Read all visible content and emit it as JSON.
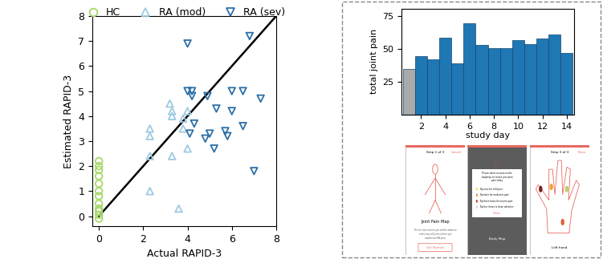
{
  "chart_data": [
    {
      "type": "scatter",
      "x_label": "Actual RAPID-3",
      "y_label": "Estimated RAPID-3",
      "xlim": [
        -0.3,
        8
      ],
      "ylim": [
        -0.4,
        8
      ],
      "xticks": [
        0,
        2,
        4,
        6,
        8
      ],
      "yticks": [
        0,
        1,
        2,
        3,
        4,
        5,
        6,
        7,
        8
      ],
      "legend": "upper center",
      "series": [
        {
          "name": "HC",
          "color": "#a6d96a",
          "marker": "circle",
          "x": [
            0,
            0,
            0,
            0,
            0,
            0,
            0,
            0,
            0,
            0,
            0,
            0
          ],
          "values": [
            2.2,
            2.0,
            1.85,
            1.6,
            1.3,
            1.0,
            0.8,
            0.5,
            0.3,
            0.2,
            0.05,
            -0.1
          ]
        },
        {
          "name": "RA (mod)",
          "color": "#9ecae1",
          "marker": "triangle_up",
          "x": [
            2.3,
            2.3,
            2.3,
            2.3,
            3.2,
            3.3,
            3.3,
            3.3,
            3.6,
            3.8,
            3.8,
            4.0,
            4.0
          ],
          "values": [
            1.0,
            2.4,
            3.2,
            3.5,
            4.5,
            4.2,
            4.0,
            2.4,
            0.3,
            3.9,
            3.5,
            2.7,
            4.2
          ]
        },
        {
          "name": "RA (sev)",
          "color": "#2c6fa7",
          "marker": "triangle_down",
          "x": [
            4.0,
            4.0,
            4.2,
            4.2,
            4.3,
            4.1,
            4.9,
            4.8,
            5.0,
            5.2,
            5.3,
            5.7,
            5.8,
            6.0,
            6.0,
            6.5,
            6.5,
            6.8,
            7.0,
            7.3
          ],
          "values": [
            6.9,
            5.0,
            5.0,
            4.8,
            3.7,
            3.3,
            4.8,
            3.1,
            3.3,
            2.7,
            4.3,
            3.4,
            3.2,
            4.2,
            5.0,
            5.0,
            3.6,
            7.2,
            1.8,
            4.7
          ]
        }
      ],
      "reference_line": {
        "type": "line",
        "color": "#000000",
        "line_style": "solid",
        "x": [
          0,
          8
        ],
        "values": [
          0,
          8
        ]
      }
    },
    {
      "type": "bar",
      "x_label": "study day",
      "y_label": "total joint pain",
      "x": [
        1,
        2,
        3,
        4,
        5,
        6,
        7,
        8,
        9,
        10,
        11,
        12,
        13,
        14
      ],
      "values": [
        35,
        45,
        42,
        59,
        39,
        70,
        53,
        51,
        51,
        57,
        54,
        58,
        61,
        47
      ],
      "colors": [
        "#aaaaaa",
        "#1f77b4",
        "#1f77b4",
        "#1f77b4",
        "#1f77b4",
        "#1f77b4",
        "#1f77b4",
        "#1f77b4",
        "#1f77b4",
        "#1f77b4",
        "#1f77b4",
        "#1f77b4",
        "#1f77b4",
        "#1f77b4"
      ],
      "xlim": [
        0.4,
        14.6
      ],
      "ylim": [
        0,
        81
      ],
      "xticks": [
        2,
        4,
        6,
        8,
        10,
        12,
        14
      ],
      "yticks": [
        25,
        50,
        75
      ]
    }
  ],
  "screens": [
    {
      "header": "Step 1 of 3",
      "action": "Cancel",
      "title": "Joint Pain Map",
      "body": "On the next screen you will be asked to\nselect any all joints where you\nexperience RA pain.",
      "button": "Get Started"
    },
    {
      "title": "Body Map",
      "dialog": [
        "Please select an area on the\nbodymap to record your joint\npain today",
        "Tap once for mild pain",
        "Tap twice for moderate pain",
        "Tap three times for severe pain",
        "Tap four times to clear selection"
      ],
      "button": "Close"
    },
    {
      "header": "Step 3 of 3",
      "action": "Done",
      "title": "Left hand"
    }
  ]
}
